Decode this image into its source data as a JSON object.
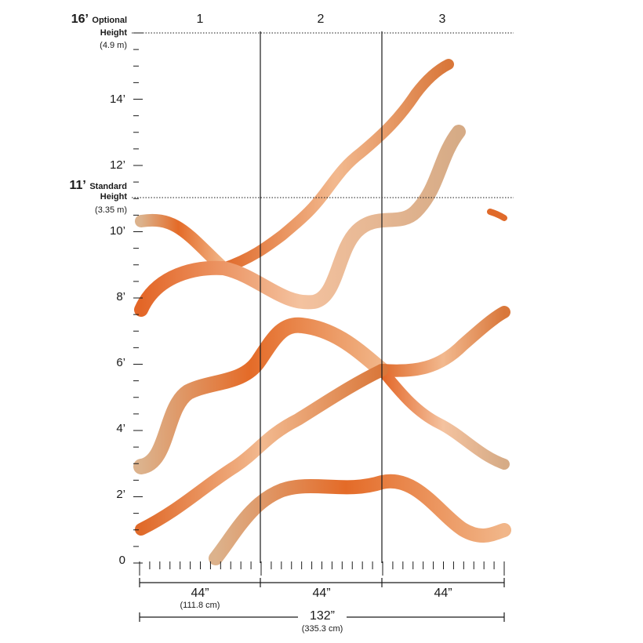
{
  "panels": [
    "1",
    "2",
    "3"
  ],
  "height_axis": {
    "ticks": [
      "0",
      "2’",
      "4’",
      "6’",
      "8’",
      "10’",
      "12’",
      "14’"
    ],
    "optional": {
      "value": "16’",
      "label": "Optional",
      "label2": "Height",
      "metric": "(4.9 m)"
    },
    "standard": {
      "value": "11’",
      "label": "Standard",
      "label2": "Height",
      "metric": "(3.35 m)"
    }
  },
  "width": {
    "panel_width": "44”",
    "panel_width_metric": "(111.8 cm)",
    "total_width": "132”",
    "total_width_metric": "(335.3 cm)"
  },
  "colors": {
    "orange": "#e06a2a",
    "peach": "#f0b48a",
    "tan": "#d7b48e",
    "ink": "#1a1a1a"
  }
}
